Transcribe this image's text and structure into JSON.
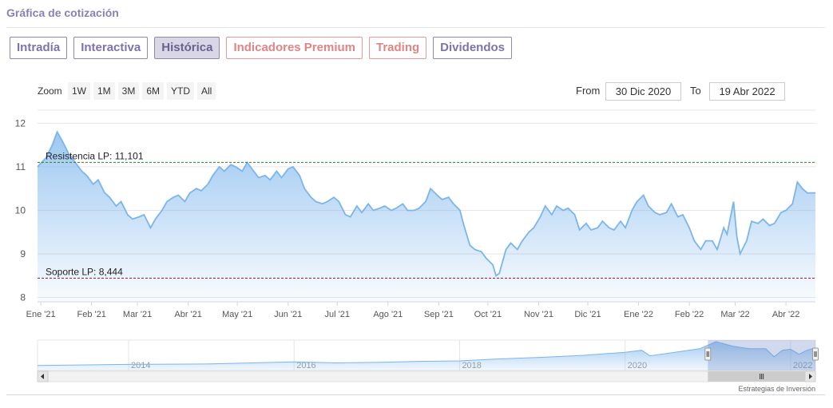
{
  "header": {
    "title": "Gráfica de cotización"
  },
  "tabs": [
    {
      "label": "Intradía",
      "style": "normal"
    },
    {
      "label": "Interactiva",
      "style": "normal"
    },
    {
      "label": "Histórica",
      "style": "active"
    },
    {
      "label": "Indicadores Premium",
      "style": "premium"
    },
    {
      "label": "Trading",
      "style": "premium"
    },
    {
      "label": "Dividendos",
      "style": "normal"
    }
  ],
  "range_selector": {
    "zoom_label": "Zoom",
    "buttons": [
      "1W",
      "1M",
      "3M",
      "6M",
      "YTD",
      "All"
    ],
    "from_label": "From",
    "from_value": "30 Dic 2020",
    "to_label": "To",
    "to_value": "19 Abr 2022"
  },
  "credit": "Estrategias de Inversión",
  "colors": {
    "line": "#7cb5ec",
    "resistance": "#2e7d32",
    "support": "#8b1a3a",
    "accent": "#8a80b8",
    "premium": "#e08585"
  },
  "chart_data": {
    "type": "area",
    "title": "",
    "xlabel": "",
    "ylabel": "",
    "ylim": [
      7.9,
      12.3
    ],
    "yticks": [
      8,
      9,
      10,
      11,
      12
    ],
    "x_range": [
      "2020-12-30",
      "2022-04-19"
    ],
    "x_ticks": [
      {
        "label": "Ene '21",
        "date": "2021-01-01"
      },
      {
        "label": "Feb '21",
        "date": "2021-02-01"
      },
      {
        "label": "Mar '21",
        "date": "2021-03-01"
      },
      {
        "label": "Abr '21",
        "date": "2021-04-01"
      },
      {
        "label": "May '21",
        "date": "2021-05-01"
      },
      {
        "label": "Jun '21",
        "date": "2021-06-01"
      },
      {
        "label": "Jul '21",
        "date": "2021-07-01"
      },
      {
        "label": "Ago '21",
        "date": "2021-08-01"
      },
      {
        "label": "Sep '21",
        "date": "2021-09-01"
      },
      {
        "label": "Oct '21",
        "date": "2021-10-01"
      },
      {
        "label": "Nov '21",
        "date": "2021-11-01"
      },
      {
        "label": "Dic '21",
        "date": "2021-12-01"
      },
      {
        "label": "Ene '22",
        "date": "2022-01-01"
      },
      {
        "label": "Feb '22",
        "date": "2022-02-01"
      },
      {
        "label": "Mar '22",
        "date": "2022-03-01"
      },
      {
        "label": "Abr '22",
        "date": "2022-04-01"
      }
    ],
    "series": [
      {
        "points": [
          [
            "2020-12-30",
            11.0
          ],
          [
            "2021-01-04",
            11.2
          ],
          [
            "2021-01-08",
            11.5
          ],
          [
            "2021-01-11",
            11.8
          ],
          [
            "2021-01-14",
            11.6
          ],
          [
            "2021-01-18",
            11.3
          ],
          [
            "2021-01-22",
            11.1
          ],
          [
            "2021-01-26",
            10.9
          ],
          [
            "2021-01-29",
            10.8
          ],
          [
            "2021-02-02",
            10.6
          ],
          [
            "2021-02-05",
            10.7
          ],
          [
            "2021-02-09",
            10.4
          ],
          [
            "2021-02-12",
            10.3
          ],
          [
            "2021-02-16",
            10.1
          ],
          [
            "2021-02-19",
            10.2
          ],
          [
            "2021-02-23",
            9.9
          ],
          [
            "2021-02-26",
            9.8
          ],
          [
            "2021-03-02",
            9.85
          ],
          [
            "2021-03-05",
            9.9
          ],
          [
            "2021-03-09",
            9.6
          ],
          [
            "2021-03-12",
            9.8
          ],
          [
            "2021-03-16",
            10.0
          ],
          [
            "2021-03-19",
            10.2
          ],
          [
            "2021-03-23",
            10.3
          ],
          [
            "2021-03-26",
            10.35
          ],
          [
            "2021-03-30",
            10.2
          ],
          [
            "2021-04-02",
            10.4
          ],
          [
            "2021-04-06",
            10.5
          ],
          [
            "2021-04-09",
            10.45
          ],
          [
            "2021-04-13",
            10.6
          ],
          [
            "2021-04-16",
            10.8
          ],
          [
            "2021-04-20",
            11.0
          ],
          [
            "2021-04-23",
            10.9
          ],
          [
            "2021-04-27",
            11.05
          ],
          [
            "2021-04-30",
            11.0
          ],
          [
            "2021-05-04",
            10.9
          ],
          [
            "2021-05-07",
            11.1
          ],
          [
            "2021-05-11",
            10.9
          ],
          [
            "2021-05-14",
            10.75
          ],
          [
            "2021-05-18",
            10.8
          ],
          [
            "2021-05-21",
            10.7
          ],
          [
            "2021-05-25",
            10.9
          ],
          [
            "2021-05-28",
            10.75
          ],
          [
            "2021-06-01",
            10.95
          ],
          [
            "2021-06-04",
            11.0
          ],
          [
            "2021-06-08",
            10.8
          ],
          [
            "2021-06-11",
            10.5
          ],
          [
            "2021-06-15",
            10.3
          ],
          [
            "2021-06-18",
            10.2
          ],
          [
            "2021-06-22",
            10.15
          ],
          [
            "2021-06-25",
            10.2
          ],
          [
            "2021-06-29",
            10.3
          ],
          [
            "2021-07-02",
            10.2
          ],
          [
            "2021-07-06",
            9.9
          ],
          [
            "2021-07-09",
            9.85
          ],
          [
            "2021-07-13",
            10.1
          ],
          [
            "2021-07-16",
            9.95
          ],
          [
            "2021-07-20",
            10.15
          ],
          [
            "2021-07-23",
            10.0
          ],
          [
            "2021-07-27",
            10.05
          ],
          [
            "2021-07-30",
            10.1
          ],
          [
            "2021-08-03",
            10.0
          ],
          [
            "2021-08-06",
            10.05
          ],
          [
            "2021-08-10",
            10.15
          ],
          [
            "2021-08-13",
            10.0
          ],
          [
            "2021-08-17",
            10.0
          ],
          [
            "2021-08-20",
            10.05
          ],
          [
            "2021-08-24",
            10.2
          ],
          [
            "2021-08-27",
            10.5
          ],
          [
            "2021-08-31",
            10.35
          ],
          [
            "2021-09-03",
            10.25
          ],
          [
            "2021-09-07",
            10.3
          ],
          [
            "2021-09-10",
            10.15
          ],
          [
            "2021-09-14",
            10.0
          ],
          [
            "2021-09-16",
            9.7
          ],
          [
            "2021-09-20",
            9.2
          ],
          [
            "2021-09-23",
            9.1
          ],
          [
            "2021-09-27",
            9.05
          ],
          [
            "2021-09-30",
            8.9
          ],
          [
            "2021-10-04",
            8.75
          ],
          [
            "2021-10-06",
            8.5
          ],
          [
            "2021-10-08",
            8.55
          ],
          [
            "2021-10-12",
            9.1
          ],
          [
            "2021-10-15",
            9.25
          ],
          [
            "2021-10-19",
            9.1
          ],
          [
            "2021-10-22",
            9.3
          ],
          [
            "2021-10-26",
            9.5
          ],
          [
            "2021-10-29",
            9.6
          ],
          [
            "2021-11-02",
            9.85
          ],
          [
            "2021-11-05",
            10.1
          ],
          [
            "2021-11-09",
            9.9
          ],
          [
            "2021-11-12",
            10.1
          ],
          [
            "2021-11-16",
            10.0
          ],
          [
            "2021-11-19",
            10.05
          ],
          [
            "2021-11-23",
            9.9
          ],
          [
            "2021-11-26",
            9.55
          ],
          [
            "2021-11-30",
            9.7
          ],
          [
            "2021-12-03",
            9.55
          ],
          [
            "2021-12-07",
            9.6
          ],
          [
            "2021-12-10",
            9.75
          ],
          [
            "2021-12-14",
            9.6
          ],
          [
            "2021-12-17",
            9.55
          ],
          [
            "2021-12-21",
            9.75
          ],
          [
            "2021-12-24",
            9.6
          ],
          [
            "2021-12-28",
            10.0
          ],
          [
            "2021-12-31",
            10.2
          ],
          [
            "2022-01-04",
            10.35
          ],
          [
            "2022-01-07",
            10.1
          ],
          [
            "2022-01-11",
            9.95
          ],
          [
            "2022-01-14",
            9.9
          ],
          [
            "2022-01-18",
            9.95
          ],
          [
            "2022-01-21",
            10.15
          ],
          [
            "2022-01-25",
            9.85
          ],
          [
            "2022-01-28",
            9.9
          ],
          [
            "2022-02-01",
            9.6
          ],
          [
            "2022-02-04",
            9.3
          ],
          [
            "2022-02-08",
            9.1
          ],
          [
            "2022-02-11",
            9.3
          ],
          [
            "2022-02-15",
            9.3
          ],
          [
            "2022-02-18",
            9.1
          ],
          [
            "2022-02-22",
            9.6
          ],
          [
            "2022-02-24",
            9.45
          ],
          [
            "2022-02-28",
            10.2
          ],
          [
            "2022-03-02",
            9.4
          ],
          [
            "2022-03-04",
            9.0
          ],
          [
            "2022-03-08",
            9.3
          ],
          [
            "2022-03-11",
            9.75
          ],
          [
            "2022-03-15",
            9.7
          ],
          [
            "2022-03-18",
            9.8
          ],
          [
            "2022-03-22",
            9.65
          ],
          [
            "2022-03-25",
            9.7
          ],
          [
            "2022-03-29",
            9.95
          ],
          [
            "2022-04-01",
            10.0
          ],
          [
            "2022-04-05",
            10.15
          ],
          [
            "2022-04-08",
            10.65
          ],
          [
            "2022-04-11",
            10.5
          ],
          [
            "2022-04-14",
            10.4
          ],
          [
            "2022-04-19",
            10.4
          ]
        ]
      }
    ],
    "annotations": [
      {
        "label": "Resistencia LP: 11,101",
        "value": 11.101,
        "color": "#2e7d32"
      },
      {
        "label": "Soporte LP: 8,444",
        "value": 8.444,
        "color": "#8b1a3a"
      }
    ],
    "navigator": {
      "ticks": [
        "2014",
        "2016",
        "2018",
        "2020",
        "2022"
      ],
      "series": [
        [
          2012.9,
          7.0
        ],
        [
          2013.5,
          7.1
        ],
        [
          2014.0,
          7.2
        ],
        [
          2014.5,
          7.25
        ],
        [
          2015.0,
          7.3
        ],
        [
          2015.5,
          7.5
        ],
        [
          2016.0,
          7.7
        ],
        [
          2016.5,
          7.5
        ],
        [
          2017.0,
          7.6
        ],
        [
          2017.5,
          7.8
        ],
        [
          2018.0,
          7.9
        ],
        [
          2018.5,
          8.3
        ],
        [
          2019.0,
          8.6
        ],
        [
          2019.5,
          9.0
        ],
        [
          2020.0,
          9.6
        ],
        [
          2020.2,
          10.0
        ],
        [
          2020.3,
          8.9
        ],
        [
          2020.6,
          9.6
        ],
        [
          2020.9,
          10.3
        ],
        [
          2021.0,
          11.0
        ],
        [
          2021.1,
          11.7
        ],
        [
          2021.3,
          10.8
        ],
        [
          2021.5,
          10.3
        ],
        [
          2021.7,
          10.3
        ],
        [
          2021.8,
          8.7
        ],
        [
          2021.9,
          10.0
        ],
        [
          2022.0,
          10.2
        ],
        [
          2022.1,
          9.2
        ],
        [
          2022.2,
          10.0
        ],
        [
          2022.3,
          10.5
        ]
      ]
    }
  }
}
